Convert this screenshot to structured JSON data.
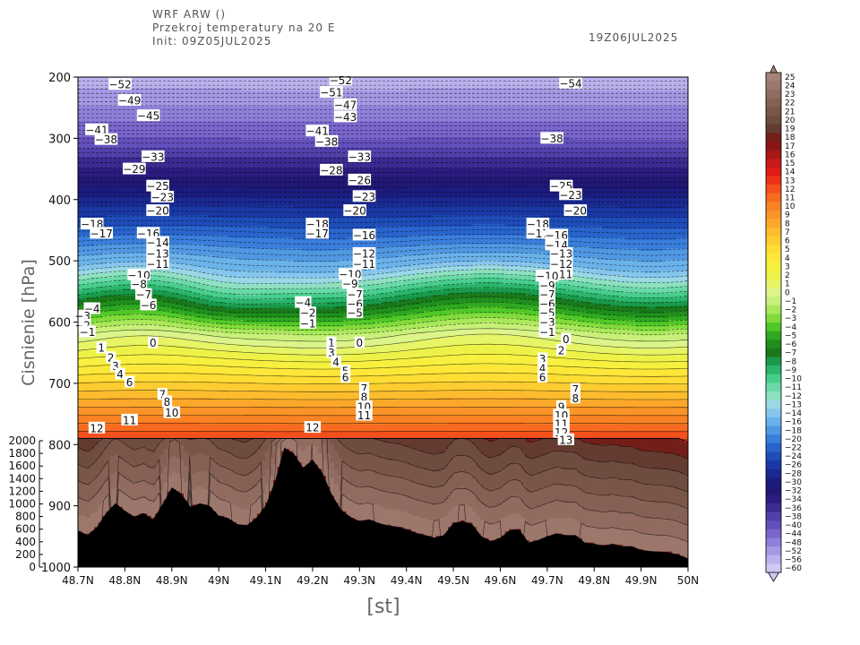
{
  "header": {
    "line1": "WRF ARW ()",
    "line2": "Przekroj temperatury na 20 E",
    "line3": "Init: 09Z05JUL2025",
    "valid": "19Z06JUL2025"
  },
  "chart_data": {
    "type": "heatmap",
    "title": "Przekroj temperatury na 20 E",
    "xlabel": "[st]",
    "ylabel": "Cisnienie  [hPa]",
    "x_ticks": [
      "48.7N",
      "48.8N",
      "48.9N",
      "49N",
      "49.1N",
      "49.2N",
      "49.3N",
      "49.4N",
      "49.5N",
      "49.6N",
      "49.7N",
      "49.8N",
      "49.9N",
      "50N"
    ],
    "xlim": [
      48.7,
      50.0
    ],
    "y_ticks": [
      200,
      300,
      400,
      500,
      600,
      700,
      800,
      900,
      1000
    ],
    "ylim": [
      200,
      1000
    ],
    "height_axis_ticks": [
      2000,
      1800,
      1600,
      1400,
      1200,
      1000,
      800,
      600,
      400,
      200,
      0
    ],
    "colorbar": {
      "labels": [
        "25",
        "24",
        "23",
        "22",
        "21",
        "20",
        "19",
        "18",
        "17",
        "16",
        "15",
        "14",
        "13",
        "12",
        "11",
        "10",
        "9",
        "8",
        "7",
        "6",
        "5",
        "4",
        "3",
        "2",
        "1",
        "0",
        "−1",
        "−2",
        "−3",
        "−4",
        "−5",
        "−6",
        "−7",
        "−8",
        "−9",
        "−10",
        "−11",
        "−12",
        "−13",
        "−14",
        "−16",
        "−18",
        "−20",
        "−22",
        "−24",
        "−26",
        "−28",
        "−30",
        "−32",
        "−34",
        "−36",
        "−38",
        "−40",
        "−44",
        "−48",
        "−52",
        "−56",
        "−60"
      ],
      "colors": [
        "#a58277",
        "#9c776c",
        "#916b60",
        "#856054",
        "#7a5649",
        "#6e4c3f",
        "#643b30",
        "#741e1a",
        "#8a1515",
        "#a81616",
        "#c81818",
        "#e01a14",
        "#ee3216",
        "#f4501c",
        "#f76a20",
        "#f88224",
        "#fa9428",
        "#fba82a",
        "#fcbc2e",
        "#fdcc30",
        "#fedd34",
        "#fde83a",
        "#f7f03e",
        "#eef248",
        "#e6f466",
        "#dcf48a",
        "#c8f07a",
        "#a8e85a",
        "#80dc3a",
        "#50c828",
        "#2ea820",
        "#1f8e1d",
        "#1a781a",
        "#199a4a",
        "#2ab56b",
        "#47cd8c",
        "#6ad9a8",
        "#8ee1c0",
        "#9ad8e6",
        "#86c6ee",
        "#6ab2ea",
        "#5098e2",
        "#3a7edc",
        "#2864cc",
        "#1e4cb8",
        "#1a38a4",
        "#1a2890",
        "#1c1c7e",
        "#201874",
        "#2c1c80",
        "#3d2a92",
        "#5040a8",
        "#6450bc",
        "#7a66cc",
        "#8e80da",
        "#a698e4",
        "#bcb0ec",
        "#d2c8f4"
      ]
    },
    "contour_labels": [
      {
        "x": 48.79,
        "p": 212,
        "t": "−52"
      },
      {
        "x": 48.81,
        "p": 238,
        "t": "−49"
      },
      {
        "x": 48.85,
        "p": 263,
        "t": "−45"
      },
      {
        "x": 48.74,
        "p": 286,
        "t": "−41"
      },
      {
        "x": 48.76,
        "p": 302,
        "t": "−38"
      },
      {
        "x": 48.86,
        "p": 330,
        "t": "−33"
      },
      {
        "x": 48.82,
        "p": 350,
        "t": "−29"
      },
      {
        "x": 48.87,
        "p": 378,
        "t": "−25"
      },
      {
        "x": 48.88,
        "p": 396,
        "t": "−23"
      },
      {
        "x": 48.87,
        "p": 418,
        "t": "−20"
      },
      {
        "x": 48.73,
        "p": 440,
        "t": "−18"
      },
      {
        "x": 48.75,
        "p": 455,
        "t": "−17"
      },
      {
        "x": 48.85,
        "p": 455,
        "t": "−16"
      },
      {
        "x": 48.87,
        "p": 470,
        "t": "−14"
      },
      {
        "x": 48.87,
        "p": 488,
        "t": "−13"
      },
      {
        "x": 48.87,
        "p": 505,
        "t": "−11"
      },
      {
        "x": 48.83,
        "p": 523,
        "t": "−10"
      },
      {
        "x": 48.83,
        "p": 538,
        "t": "−8"
      },
      {
        "x": 48.84,
        "p": 555,
        "t": "−7"
      },
      {
        "x": 48.85,
        "p": 572,
        "t": "−6"
      },
      {
        "x": 48.73,
        "p": 578,
        "t": "−4"
      },
      {
        "x": 48.71,
        "p": 590,
        "t": "−3"
      },
      {
        "x": 48.71,
        "p": 605,
        "t": "−2"
      },
      {
        "x": 48.72,
        "p": 616,
        "t": "−1"
      },
      {
        "x": 48.86,
        "p": 634,
        "t": "0"
      },
      {
        "x": 48.75,
        "p": 642,
        "t": "1"
      },
      {
        "x": 48.77,
        "p": 658,
        "t": "2"
      },
      {
        "x": 48.78,
        "p": 672,
        "t": "3"
      },
      {
        "x": 48.79,
        "p": 685,
        "t": "4"
      },
      {
        "x": 48.81,
        "p": 698,
        "t": "6"
      },
      {
        "x": 48.88,
        "p": 718,
        "t": "7"
      },
      {
        "x": 48.89,
        "p": 730,
        "t": "8"
      },
      {
        "x": 48.9,
        "p": 748,
        "t": "10"
      },
      {
        "x": 48.81,
        "p": 760,
        "t": "11"
      },
      {
        "x": 48.74,
        "p": 773,
        "t": "12"
      },
      {
        "x": 49.26,
        "p": 205,
        "t": "−52"
      },
      {
        "x": 49.24,
        "p": 225,
        "t": "−51"
      },
      {
        "x": 49.27,
        "p": 245,
        "t": "−47"
      },
      {
        "x": 49.27,
        "p": 265,
        "t": "−43"
      },
      {
        "x": 49.21,
        "p": 288,
        "t": "−41"
      },
      {
        "x": 49.23,
        "p": 305,
        "t": "−38"
      },
      {
        "x": 49.3,
        "p": 330,
        "t": "−33"
      },
      {
        "x": 49.24,
        "p": 352,
        "t": "−28"
      },
      {
        "x": 49.3,
        "p": 368,
        "t": "−26"
      },
      {
        "x": 49.31,
        "p": 395,
        "t": "−23"
      },
      {
        "x": 49.29,
        "p": 418,
        "t": "−20"
      },
      {
        "x": 49.21,
        "p": 440,
        "t": "−18"
      },
      {
        "x": 49.21,
        "p": 455,
        "t": "−17"
      },
      {
        "x": 49.31,
        "p": 458,
        "t": "−16"
      },
      {
        "x": 49.31,
        "p": 488,
        "t": "−12"
      },
      {
        "x": 49.31,
        "p": 505,
        "t": "−11"
      },
      {
        "x": 49.28,
        "p": 522,
        "t": "−10"
      },
      {
        "x": 49.28,
        "p": 537,
        "t": "−9"
      },
      {
        "x": 49.29,
        "p": 555,
        "t": "−7"
      },
      {
        "x": 49.29,
        "p": 570,
        "t": "−6"
      },
      {
        "x": 49.29,
        "p": 585,
        "t": "−5"
      },
      {
        "x": 49.18,
        "p": 568,
        "t": "−4"
      },
      {
        "x": 49.19,
        "p": 585,
        "t": "−2"
      },
      {
        "x": 49.19,
        "p": 602,
        "t": "−1"
      },
      {
        "x": 49.3,
        "p": 634,
        "t": "0"
      },
      {
        "x": 49.24,
        "p": 634,
        "t": "1"
      },
      {
        "x": 49.24,
        "p": 650,
        "t": "3"
      },
      {
        "x": 49.25,
        "p": 665,
        "t": "4"
      },
      {
        "x": 49.27,
        "p": 680,
        "t": "5"
      },
      {
        "x": 49.27,
        "p": 690,
        "t": "6"
      },
      {
        "x": 49.31,
        "p": 708,
        "t": "7"
      },
      {
        "x": 49.31,
        "p": 722,
        "t": "8"
      },
      {
        "x": 49.31,
        "p": 738,
        "t": "10"
      },
      {
        "x": 49.31,
        "p": 752,
        "t": "11"
      },
      {
        "x": 49.2,
        "p": 772,
        "t": "12"
      },
      {
        "x": 49.75,
        "p": 210,
        "t": "−54"
      },
      {
        "x": 49.71,
        "p": 300,
        "t": "−38"
      },
      {
        "x": 49.73,
        "p": 378,
        "t": "−25"
      },
      {
        "x": 49.75,
        "p": 392,
        "t": "−23"
      },
      {
        "x": 49.76,
        "p": 418,
        "t": "−20"
      },
      {
        "x": 49.68,
        "p": 440,
        "t": "−18"
      },
      {
        "x": 49.68,
        "p": 455,
        "t": "−17"
      },
      {
        "x": 49.72,
        "p": 458,
        "t": "−16"
      },
      {
        "x": 49.72,
        "p": 474,
        "t": "−14"
      },
      {
        "x": 49.73,
        "p": 488,
        "t": "−13"
      },
      {
        "x": 49.73,
        "p": 505,
        "t": "−12"
      },
      {
        "x": 49.73,
        "p": 522,
        "t": "−11"
      },
      {
        "x": 49.7,
        "p": 525,
        "t": "−10"
      },
      {
        "x": 49.7,
        "p": 540,
        "t": "−9"
      },
      {
        "x": 49.7,
        "p": 555,
        "t": "−7"
      },
      {
        "x": 49.7,
        "p": 570,
        "t": "−6"
      },
      {
        "x": 49.7,
        "p": 585,
        "t": "−5"
      },
      {
        "x": 49.7,
        "p": 600,
        "t": "−3"
      },
      {
        "x": 49.7,
        "p": 616,
        "t": "−1"
      },
      {
        "x": 49.74,
        "p": 628,
        "t": "0"
      },
      {
        "x": 49.73,
        "p": 646,
        "t": "2"
      },
      {
        "x": 49.69,
        "p": 660,
        "t": "3"
      },
      {
        "x": 49.69,
        "p": 675,
        "t": "4"
      },
      {
        "x": 49.69,
        "p": 690,
        "t": "6"
      },
      {
        "x": 49.76,
        "p": 710,
        "t": "7"
      },
      {
        "x": 49.76,
        "p": 724,
        "t": "8"
      },
      {
        "x": 49.73,
        "p": 738,
        "t": "9"
      },
      {
        "x": 49.73,
        "p": 752,
        "t": "10"
      },
      {
        "x": 49.73,
        "p": 766,
        "t": "11"
      },
      {
        "x": 49.73,
        "p": 780,
        "t": "12"
      },
      {
        "x": 49.74,
        "p": 792,
        "t": "13"
      }
    ],
    "terrain": {
      "x": [
        48.7,
        48.72,
        48.74,
        48.76,
        48.78,
        48.8,
        48.82,
        48.84,
        48.86,
        48.88,
        48.9,
        48.92,
        48.94,
        48.96,
        48.98,
        49.0,
        49.02,
        49.04,
        49.06,
        49.08,
        49.1,
        49.12,
        49.14,
        49.16,
        49.18,
        49.2,
        49.22,
        49.24,
        49.26,
        49.28,
        49.3,
        49.32,
        49.34,
        49.36,
        49.38,
        49.4,
        49.42,
        49.44,
        49.46,
        49.48,
        49.5,
        49.52,
        49.54,
        49.56,
        49.58,
        49.6,
        49.62,
        49.64,
        49.66,
        49.68,
        49.7,
        49.72,
        49.74,
        49.76,
        49.78,
        49.8,
        49.82,
        49.84,
        49.86,
        49.88,
        49.9,
        49.92,
        49.94,
        49.96,
        49.98,
        50.0
      ],
      "p": [
        940,
        948,
        935,
        912,
        896,
        908,
        918,
        912,
        922,
        898,
        870,
        880,
        902,
        896,
        900,
        916,
        920,
        930,
        932,
        920,
        900,
        860,
        805,
        815,
        838,
        825,
        845,
        880,
        906,
        918,
        925,
        922,
        928,
        932,
        934,
        938,
        944,
        948,
        952,
        948,
        928,
        925,
        930,
        950,
        958,
        952,
        940,
        938,
        960,
        956,
        950,
        945,
        948,
        948,
        960,
        962,
        965,
        962,
        966,
        966,
        972,
        974,
        975,
        976,
        980,
        986
      ]
    }
  }
}
